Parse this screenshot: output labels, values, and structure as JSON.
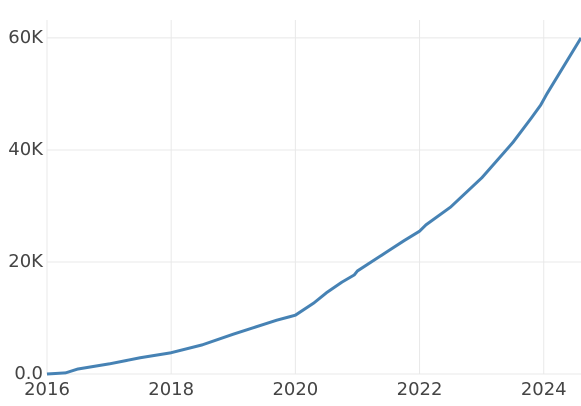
{
  "chart_data": {
    "type": "line",
    "x": [
      2016.0,
      2016.3,
      2016.5,
      2017.0,
      2017.5,
      2018.0,
      2018.5,
      2019.0,
      2019.5,
      2019.7,
      2019.9,
      2020.0,
      2020.3,
      2020.5,
      2020.75,
      2020.95,
      2021.0,
      2021.5,
      2021.75,
      2022.0,
      2022.1,
      2022.5,
      2023.0,
      2023.5,
      2023.8,
      2023.95,
      2024.05,
      2024.6
    ],
    "series": [
      {
        "color": "#4682b4",
        "values": [
          0,
          200,
          900,
          1800,
          2900,
          3800,
          5200,
          7100,
          8900,
          9600,
          10200,
          10500,
          12700,
          14500,
          16400,
          17700,
          18400,
          22000,
          23800,
          25500,
          26600,
          29800,
          35000,
          41300,
          45700,
          48000,
          50000,
          60000
        ]
      }
    ],
    "xlim": [
      2016,
      2024.6
    ],
    "xticks": [
      2016,
      2018,
      2020,
      2022,
      2024
    ],
    "ylim": [
      0,
      63200
    ],
    "yticks": [
      {
        "value": 0,
        "label": "0.0"
      },
      {
        "value": 20000,
        "label": "20K"
      },
      {
        "value": 40000,
        "label": "40K"
      },
      {
        "value": 60000,
        "label": "60K"
      }
    ],
    "grid": true
  }
}
